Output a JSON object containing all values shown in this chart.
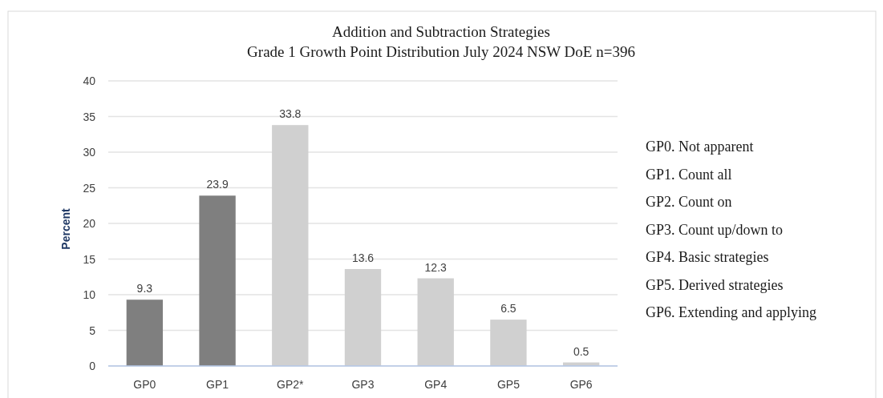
{
  "chart_data": {
    "type": "bar",
    "title": "Addition and Subtraction Strategies",
    "subtitle": "Grade 1 Growth Point Distribution July 2024 NSW DoE n=396",
    "ylabel": "Percent",
    "categories": [
      "GP0",
      "GP1",
      "GP2*",
      "GP3",
      "GP4",
      "GP5",
      "GP6"
    ],
    "values": [
      9.3,
      23.9,
      33.8,
      13.6,
      12.3,
      6.5,
      0.5
    ],
    "colors": [
      "#7f7f7f",
      "#7f7f7f",
      "#d0d0d0",
      "#d0d0d0",
      "#d0d0d0",
      "#d0d0d0",
      "#d0d0d0"
    ],
    "ylim": [
      0,
      40
    ],
    "yticks": [
      0,
      5,
      10,
      15,
      20,
      25,
      30,
      35,
      40
    ],
    "grid": "y",
    "data_labels": true,
    "annotations": [
      "GP0. Not apparent",
      "GP1. Count all",
      "GP2. Count on",
      "GP3. Count up/down to",
      "GP4. Basic strategies",
      "GP5. Derived strategies",
      "GP6. Extending and applying"
    ]
  }
}
